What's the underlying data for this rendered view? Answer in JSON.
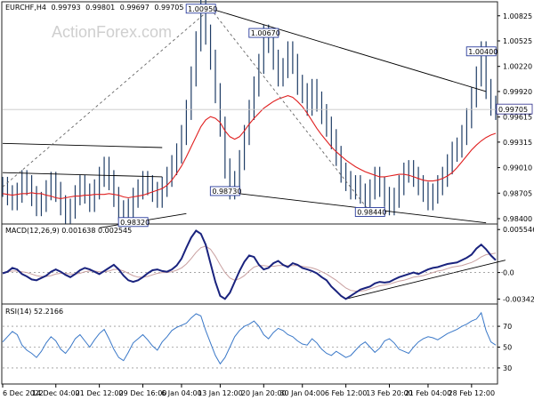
{
  "watermark": "ActionForex.com",
  "chart_data": [
    {
      "type": "line",
      "panel": "price",
      "symbol": "EURCHF,H4",
      "ohlc_header": [
        "0.99793",
        "0.99801",
        "0.99697",
        "0.99705"
      ],
      "ylim": [
        0.984,
        1.0095
      ],
      "y_ticks": [
        "1.00825",
        "1.00525",
        "1.00220",
        "0.99920",
        "0.99615",
        "0.99315",
        "0.99010",
        "0.98705",
        "0.98400"
      ],
      "current_price": "0.99705",
      "current_value": 0.99705,
      "colors": {
        "price": "#1f3d66",
        "ma": "#e02020",
        "trendline": "#000000",
        "projection": "#666666",
        "current": "#2a2a8a"
      },
      "series": [
        {
          "values": [
            0.9878,
            0.9868,
            0.9862,
            0.9871,
            0.9886,
            0.988,
            0.9867,
            0.9855,
            0.986,
            0.9874,
            0.9884,
            0.9872,
            0.9856,
            0.9846,
            0.9852,
            0.9868,
            0.988,
            0.987,
            0.986,
            0.9875,
            0.989,
            0.9902,
            0.9886,
            0.9866,
            0.985,
            0.9843,
            0.9852,
            0.9865,
            0.9875,
            0.9885,
            0.988,
            0.9872,
            0.9865,
            0.9878,
            0.989,
            0.9904,
            0.9918,
            0.994,
            0.997,
            1.001,
            1.0052,
            1.009,
            1.006,
            1.003,
            0.999,
            0.995,
            0.99,
            0.9875,
            0.9885,
            0.991,
            0.994,
            0.997,
            0.9998,
            1.0025,
            1.006,
            1.005,
            1.003,
            1.001,
            1.002,
            1.004,
            1.0025,
            1.0,
            0.999,
            0.9975,
            0.9995,
            0.998,
            0.9965,
            0.995,
            0.9935,
            0.9915,
            0.9895,
            0.9885,
            0.9875,
            0.988,
            0.987,
            0.986,
            0.9875,
            0.989,
            0.9878,
            0.9866,
            0.9856,
            0.9865,
            0.988,
            0.9895,
            0.9898,
            0.989,
            0.988,
            0.9872,
            0.9862,
            0.987,
            0.988,
            0.989,
            0.9905,
            0.992,
            0.9925,
            0.994,
            0.996,
            0.9985,
            1.001,
            1.004,
            0.9995,
            0.9975,
            0.997
          ]
        },
        {
          "name": "MA",
          "values": [
            0.987,
            0.9869,
            0.9868,
            0.9869,
            0.987,
            0.987,
            0.9871,
            0.987,
            0.987,
            0.9868,
            0.9867,
            0.9865,
            0.9864,
            0.9865,
            0.9866,
            0.9867,
            0.9867,
            0.9868,
            0.9868,
            0.9869,
            0.9869,
            0.9869,
            0.987,
            0.9869,
            0.9868,
            0.9866,
            0.9865,
            0.9866,
            0.9867,
            0.9868,
            0.987,
            0.9872,
            0.9874,
            0.9876,
            0.988,
            0.9886,
            0.9894,
            0.9903,
            0.9914,
            0.9926,
            0.9938,
            0.995,
            0.9958,
            0.9962,
            0.996,
            0.9955,
            0.9945,
            0.9938,
            0.9935,
            0.9938,
            0.9945,
            0.9953,
            0.996,
            0.9966,
            0.9972,
            0.9976,
            0.998,
            0.9983,
            0.9985,
            0.9987,
            0.9985,
            0.998,
            0.9974,
            0.9966,
            0.9957,
            0.9948,
            0.994,
            0.9933,
            0.9926,
            0.992,
            0.9915,
            0.991,
            0.9906,
            0.9902,
            0.9899,
            0.9896,
            0.9894,
            0.9892,
            0.989,
            0.989,
            0.9891,
            0.9892,
            0.9893,
            0.9893,
            0.9892,
            0.989,
            0.9888,
            0.9886,
            0.9885,
            0.9885,
            0.9886,
            0.9888,
            0.9891,
            0.9895,
            0.9901,
            0.9908,
            0.9915,
            0.9922,
            0.9928,
            0.9933,
            0.9937,
            0.994,
            0.9942
          ]
        }
      ],
      "annotations": [
        {
          "text": "1.00950",
          "x": 41,
          "y": 1.0091
        },
        {
          "text": "1.00670",
          "x": 54,
          "y": 1.0062
        },
        {
          "text": "1.00400",
          "x": 99,
          "y": 1.004
        },
        {
          "text": "0.98730",
          "x": 46,
          "y": 0.9873
        },
        {
          "text": "0.98320",
          "x": 27,
          "y": 0.9836
        },
        {
          "text": "0.98440",
          "x": 76,
          "y": 0.9848
        }
      ],
      "trendlines": [
        {
          "style": "solid",
          "x": [
            0,
            33
          ],
          "y": [
            0.993,
            0.9925
          ]
        },
        {
          "style": "solid",
          "x": [
            0,
            33
          ],
          "y": [
            0.9895,
            0.989
          ]
        },
        {
          "style": "solid",
          "x": [
            20,
            38
          ],
          "y": [
            0.9829,
            0.9846
          ]
        },
        {
          "style": "solid",
          "x": [
            43,
            100
          ],
          "y": [
            1.0091,
            0.9992
          ]
        },
        {
          "style": "solid",
          "x": [
            46,
            100
          ],
          "y": [
            0.9872,
            0.9835
          ]
        },
        {
          "style": "dashed",
          "x": [
            0,
            43
          ],
          "y": [
            0.9878,
            1.0091
          ]
        },
        {
          "style": "dashed",
          "x": [
            43,
            76
          ],
          "y": [
            1.0091,
            0.9848
          ]
        }
      ],
      "x_ticks": [
        {
          "label": "6 Dec 2022",
          "index": 0
        },
        {
          "label": "14 Dec 04:00",
          "index": 11
        },
        {
          "label": "21 Dec 12:00",
          "index": 20
        },
        {
          "label": "29 Dec 16:00",
          "index": 29
        },
        {
          "label": "6 Jan 04:00",
          "index": 37
        },
        {
          "label": "13 Jan 12:00",
          "index": 45
        },
        {
          "label": "20 Jan 20:00",
          "index": 54
        },
        {
          "label": "30 Jan 04:00",
          "index": 62
        },
        {
          "label": "6 Feb 12:00",
          "index": 71
        },
        {
          "label": "13 Feb 20:00",
          "index": 80
        },
        {
          "label": "21 Feb 04:00",
          "index": 88
        },
        {
          "label": "28 Feb 12:00",
          "index": 97
        }
      ]
    },
    {
      "type": "line",
      "panel": "macd",
      "title": "MACD(12,26,9) 0.001638 0.002545",
      "ylim": [
        -0.0036,
        0.0058
      ],
      "y_ticks": [
        "0.005546",
        "0.0",
        "-0.003423"
      ],
      "colors": {
        "macd": "#1a237e",
        "signal": "#c9a0a0",
        "trendline": "#000000"
      },
      "series": [
        {
          "values": [
            -0.0001,
            0.0001,
            0.0006,
            0.0004,
            -0.0002,
            -0.0005,
            -0.0009,
            -0.001,
            -0.0007,
            -0.0004,
            0.0001,
            0.0004,
            0.0001,
            -0.0003,
            -0.0006,
            -0.0002,
            0.0003,
            0.0006,
            0.0004,
            0.0001,
            -0.0002,
            0.0002,
            0.0006,
            0.001,
            0.0004,
            -0.0004,
            -0.001,
            -0.0012,
            -0.001,
            -0.0006,
            -0.0001,
            0.0003,
            0.0004,
            0.0002,
            0.0001,
            0.0004,
            0.0009,
            0.0018,
            0.0032,
            0.0045,
            0.0054,
            0.005,
            0.0036,
            0.0012,
            -0.0012,
            -0.003,
            -0.0034,
            -0.0026,
            -0.0012,
            0.0002,
            0.0014,
            0.0022,
            0.002,
            0.001,
            0.0004,
            0.0006,
            0.0012,
            0.0015,
            0.001,
            0.0007,
            0.0012,
            0.001,
            0.0006,
            0.0004,
            0.0002,
            -0.0001,
            -0.0006,
            -0.001,
            -0.0018,
            -0.0024,
            -0.003,
            -0.0034,
            -0.003,
            -0.0026,
            -0.0022,
            -0.002,
            -0.0018,
            -0.0014,
            -0.0012,
            -0.0013,
            -0.0012,
            -0.0009,
            -0.0006,
            -0.0004,
            -0.0002,
            0.0,
            -0.0002,
            0.0001,
            0.0004,
            0.0006,
            0.0007,
            0.0009,
            0.0011,
            0.0012,
            0.0013,
            0.0016,
            0.0019,
            0.0023,
            0.0031,
            0.0036,
            0.003,
            0.0022,
            0.0016
          ]
        },
        {
          "values": [
            0.0,
            0.0001,
            0.0002,
            0.0002,
            0.0001,
            0.0,
            -0.0002,
            -0.0004,
            -0.0005,
            -0.0005,
            -0.0004,
            -0.0002,
            -0.0001,
            -0.0001,
            -0.0002,
            -0.0002,
            -0.0001,
            0.0001,
            0.0002,
            0.0002,
            0.0001,
            0.0001,
            0.0002,
            0.0004,
            0.0004,
            0.0002,
            -0.0001,
            -0.0004,
            -0.0006,
            -0.0006,
            -0.0005,
            -0.0003,
            -0.0001,
            0.0,
            0.0,
            0.0001,
            0.0003,
            0.0006,
            0.0011,
            0.0018,
            0.0026,
            0.0032,
            0.0034,
            0.003,
            0.0021,
            0.001,
            0.0,
            -0.0007,
            -0.001,
            -0.0008,
            -0.0004,
            0.0002,
            0.0007,
            0.0009,
            0.0009,
            0.0008,
            0.0008,
            0.0009,
            0.0009,
            0.0009,
            0.0009,
            0.0009,
            0.0008,
            0.0007,
            0.0006,
            0.0004,
            0.0001,
            -0.0002,
            -0.0006,
            -0.001,
            -0.0015,
            -0.002,
            -0.0023,
            -0.0024,
            -0.0024,
            -0.0023,
            -0.0021,
            -0.0019,
            -0.0017,
            -0.0016,
            -0.0015,
            -0.0013,
            -0.0011,
            -0.001,
            -0.0008,
            -0.0006,
            -0.0005,
            -0.0004,
            -0.0002,
            0.0,
            0.0002,
            0.0003,
            0.0005,
            0.0007,
            0.0008,
            0.0009,
            0.0011,
            0.0013,
            0.0016,
            0.002,
            0.0023,
            0.0024,
            0.0025
          ]
        }
      ],
      "trendlines": [
        {
          "style": "solid",
          "x": [
            71,
            104
          ],
          "y": [
            -0.0034,
            0.0016
          ]
        },
        {
          "style": "dotted",
          "x": [
            0,
            104
          ],
          "y": [
            0,
            0
          ]
        }
      ]
    },
    {
      "type": "line",
      "panel": "rsi",
      "title": "RSI(14) 52.2166",
      "ylim": [
        18,
        88
      ],
      "y_ticks": [
        "70",
        "50",
        "30"
      ],
      "colors": {
        "rsi": "#3a78c8",
        "levels": "#999999"
      },
      "series": [
        {
          "values": [
            55,
            60,
            65,
            62,
            52,
            47,
            44,
            40,
            46,
            54,
            60,
            56,
            48,
            44,
            50,
            58,
            62,
            56,
            50,
            57,
            63,
            67,
            58,
            48,
            40,
            37,
            45,
            54,
            58,
            62,
            57,
            51,
            47,
            55,
            60,
            66,
            69,
            71,
            73,
            78,
            82,
            80,
            66,
            54,
            42,
            34,
            40,
            50,
            60,
            66,
            70,
            72,
            75,
            70,
            62,
            58,
            64,
            68,
            66,
            62,
            60,
            56,
            53,
            52,
            58,
            54,
            48,
            44,
            42,
            46,
            43,
            40,
            42,
            47,
            52,
            55,
            50,
            45,
            49,
            56,
            58,
            54,
            48,
            46,
            44,
            50,
            55,
            58,
            60,
            59,
            57,
            60,
            63,
            65,
            67,
            70,
            72,
            75,
            77,
            83,
            66,
            55,
            52
          ]
        }
      ],
      "levels": [
        70,
        50,
        30
      ]
    }
  ]
}
